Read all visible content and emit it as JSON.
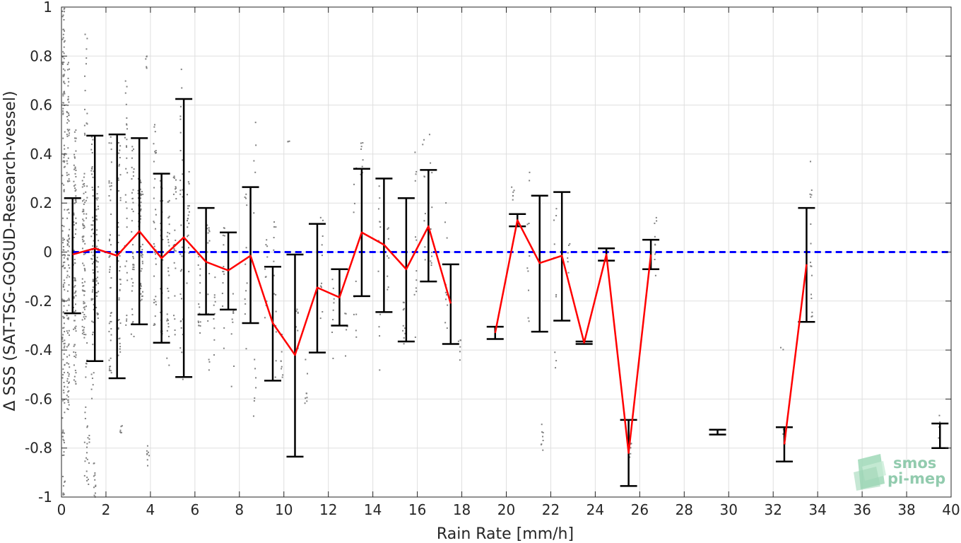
{
  "chart_data": {
    "type": "scatter",
    "xlabel": "Rain Rate [mm/h]",
    "ylabel": "Δ SSS (SAT-TSG-GOSUD-Research-vessel)",
    "xlim": [
      0,
      40
    ],
    "ylim": [
      -1,
      1
    ],
    "xticks": [
      0,
      2,
      4,
      6,
      8,
      10,
      12,
      14,
      16,
      18,
      20,
      22,
      24,
      26,
      28,
      30,
      32,
      34,
      36,
      38,
      40
    ],
    "yticks": [
      -1,
      -0.8,
      -0.6,
      -0.4,
      -0.2,
      0,
      0.2,
      0.4,
      0.6,
      0.8,
      1
    ],
    "xtick_labels": [
      "0",
      "2",
      "4",
      "6",
      "8",
      "10",
      "12",
      "14",
      "16",
      "18",
      "20",
      "22",
      "24",
      "26",
      "28",
      "30",
      "32",
      "34",
      "36",
      "38",
      "40"
    ],
    "ytick_labels": [
      "-1",
      "-0.8",
      "-0.6",
      "-0.4",
      "-0.2",
      "0",
      "0.2",
      "0.4",
      "0.6",
      "0.8",
      "1"
    ],
    "grid": true,
    "zero_line": {
      "y": 0,
      "color": "#0000ff",
      "style": "dashed"
    },
    "colors": {
      "scatter": "#808080",
      "mean": "#ff0000",
      "errorbar": "#000000",
      "zero": "#0000ff"
    },
    "errorbars": [
      {
        "x": 0.5,
        "mean": -0.01,
        "low": -0.25,
        "high": 0.22
      },
      {
        "x": 1.5,
        "mean": 0.015,
        "low": -0.445,
        "high": 0.475
      },
      {
        "x": 2.5,
        "mean": -0.015,
        "low": -0.515,
        "high": 0.48
      },
      {
        "x": 3.5,
        "mean": 0.085,
        "low": -0.295,
        "high": 0.465
      },
      {
        "x": 4.5,
        "mean": -0.025,
        "low": -0.37,
        "high": 0.32
      },
      {
        "x": 5.5,
        "mean": 0.06,
        "low": -0.51,
        "high": 0.625
      },
      {
        "x": 6.5,
        "mean": -0.04,
        "low": -0.255,
        "high": 0.18
      },
      {
        "x": 7.5,
        "mean": -0.075,
        "low": -0.235,
        "high": 0.08
      },
      {
        "x": 8.5,
        "mean": -0.015,
        "low": -0.29,
        "high": 0.265
      },
      {
        "x": 9.5,
        "mean": -0.29,
        "low": -0.525,
        "high": -0.06
      },
      {
        "x": 10.5,
        "mean": -0.42,
        "low": -0.835,
        "high": -0.01
      },
      {
        "x": 11.5,
        "mean": -0.145,
        "low": -0.41,
        "high": 0.115
      },
      {
        "x": 12.5,
        "mean": -0.185,
        "low": -0.3,
        "high": -0.07
      },
      {
        "x": 13.5,
        "mean": 0.08,
        "low": -0.18,
        "high": 0.34
      },
      {
        "x": 14.5,
        "mean": 0.03,
        "low": -0.245,
        "high": 0.3
      },
      {
        "x": 15.5,
        "mean": -0.07,
        "low": -0.365,
        "high": 0.22
      },
      {
        "x": 16.5,
        "mean": 0.105,
        "low": -0.12,
        "high": 0.335
      },
      {
        "x": 17.5,
        "mean": -0.21,
        "low": -0.375,
        "high": -0.05
      },
      {
        "x": 19.5,
        "mean": -0.33,
        "low": -0.355,
        "high": -0.305
      },
      {
        "x": 20.5,
        "mean": 0.13,
        "low": 0.105,
        "high": 0.155
      },
      {
        "x": 21.5,
        "mean": -0.045,
        "low": -0.325,
        "high": 0.23
      },
      {
        "x": 22.5,
        "mean": -0.015,
        "low": -0.28,
        "high": 0.245
      },
      {
        "x": 23.5,
        "mean": -0.37,
        "low": -0.375,
        "high": -0.365
      },
      {
        "x": 24.5,
        "mean": -0.01,
        "low": -0.035,
        "high": 0.015
      },
      {
        "x": 25.5,
        "mean": -0.82,
        "low": -0.955,
        "high": -0.685
      },
      {
        "x": 26.5,
        "mean": -0.01,
        "low": -0.07,
        "high": 0.05
      },
      {
        "x": 29.5,
        "mean": -0.735,
        "low": -0.745,
        "high": -0.725
      },
      {
        "x": 32.5,
        "mean": -0.785,
        "low": -0.855,
        "high": -0.715
      },
      {
        "x": 33.5,
        "mean": -0.05,
        "low": -0.285,
        "high": 0.18
      },
      {
        "x": 39.5,
        "mean": -0.75,
        "low": -0.8,
        "high": -0.7
      }
    ],
    "mean_line_segments": [
      [
        [
          0.5,
          -0.01
        ],
        [
          1.5,
          0.015
        ],
        [
          2.5,
          -0.015
        ],
        [
          3.5,
          0.085
        ],
        [
          4.5,
          -0.025
        ],
        [
          5.5,
          0.06
        ],
        [
          6.5,
          -0.04
        ],
        [
          7.5,
          -0.075
        ],
        [
          8.5,
          -0.015
        ],
        [
          9.5,
          -0.29
        ],
        [
          10.5,
          -0.42
        ],
        [
          11.5,
          -0.145
        ],
        [
          12.5,
          -0.185
        ],
        [
          13.5,
          0.08
        ],
        [
          14.5,
          0.03
        ],
        [
          15.5,
          -0.07
        ],
        [
          16.5,
          0.105
        ],
        [
          17.5,
          -0.21
        ]
      ],
      [
        [
          19.5,
          -0.33
        ],
        [
          20.5,
          0.13
        ],
        [
          21.5,
          -0.045
        ],
        [
          22.5,
          -0.015
        ],
        [
          23.5,
          -0.37
        ],
        [
          24.5,
          -0.01
        ],
        [
          25.5,
          -0.82
        ],
        [
          26.5,
          -0.01
        ]
      ],
      [
        [
          32.5,
          -0.785
        ],
        [
          33.5,
          -0.05
        ]
      ]
    ],
    "scatter_clusters": [
      {
        "x": 0.1,
        "y": [
          -1.0,
          1.0
        ],
        "n": 160
      },
      {
        "x": 0.3,
        "y": [
          -0.65,
          0.8
        ],
        "n": 110
      },
      {
        "x": 0.6,
        "y": [
          -0.55,
          0.5
        ],
        "n": 90
      },
      {
        "x": 1.0,
        "y": [
          -0.35,
          0.35
        ],
        "n": 70
      },
      {
        "x": 1.1,
        "y": [
          -1.0,
          0.95
        ],
        "n": 40
      },
      {
        "x": 1.4,
        "y": [
          -0.6,
          0.5
        ],
        "n": 60
      },
      {
        "x": 1.6,
        "y": [
          -0.3,
          0.3
        ],
        "n": 40
      },
      {
        "x": 1.2,
        "y": [
          -0.95,
          -0.7
        ],
        "n": 14
      },
      {
        "x": 1.5,
        "y": [
          -1.0,
          -0.85
        ],
        "n": 12
      },
      {
        "x": 2.2,
        "y": [
          -0.5,
          0.5
        ],
        "n": 45
      },
      {
        "x": 2.6,
        "y": [
          -0.45,
          0.45
        ],
        "n": 40
      },
      {
        "x": 2.9,
        "y": [
          -0.3,
          0.8
        ],
        "n": 30
      },
      {
        "x": 2.7,
        "y": [
          -0.75,
          -0.7
        ],
        "n": 6
      },
      {
        "x": 3.2,
        "y": [
          -0.35,
          0.5
        ],
        "n": 40
      },
      {
        "x": 3.6,
        "y": [
          -0.2,
          0.3
        ],
        "n": 35
      },
      {
        "x": 3.8,
        "y": [
          0.75,
          0.8
        ],
        "n": 5
      },
      {
        "x": 3.5,
        "y": [
          0.1,
          0.3
        ],
        "n": 20
      },
      {
        "x": 4.2,
        "y": [
          -0.3,
          0.55
        ],
        "n": 35
      },
      {
        "x": 4.5,
        "y": [
          -0.35,
          0.3
        ],
        "n": 30
      },
      {
        "x": 3.9,
        "y": [
          -0.9,
          -0.75
        ],
        "n": 8
      },
      {
        "x": 4.8,
        "y": [
          -0.5,
          0.25
        ],
        "n": 30
      },
      {
        "x": 5.1,
        "y": [
          -0.35,
          0.4
        ],
        "n": 25
      },
      {
        "x": 5.4,
        "y": [
          -0.65,
          0.75
        ],
        "n": 30
      },
      {
        "x": 5.7,
        "y": [
          -0.2,
          0.35
        ],
        "n": 20
      },
      {
        "x": 6.2,
        "y": [
          -0.35,
          0.2
        ],
        "n": 18
      },
      {
        "x": 6.6,
        "y": [
          -0.5,
          0.2
        ],
        "n": 16
      },
      {
        "x": 6.9,
        "y": [
          -0.45,
          -0.1
        ],
        "n": 10
      },
      {
        "x": 7.3,
        "y": [
          -0.4,
          0.1
        ],
        "n": 14
      },
      {
        "x": 7.7,
        "y": [
          -0.55,
          -0.15
        ],
        "n": 10
      },
      {
        "x": 8.3,
        "y": [
          -0.4,
          0.25
        ],
        "n": 12
      },
      {
        "x": 8.7,
        "y": [
          -0.75,
          0.55
        ],
        "n": 12
      },
      {
        "x": 9.2,
        "y": [
          -0.35,
          0.05
        ],
        "n": 10
      },
      {
        "x": 9.6,
        "y": [
          -0.55,
          0.15
        ],
        "n": 14
      },
      {
        "x": 9.9,
        "y": [
          -0.6,
          -0.3
        ],
        "n": 8
      },
      {
        "x": 10.2,
        "y": [
          0.45,
          0.47
        ],
        "n": 3
      },
      {
        "x": 10.6,
        "y": [
          -0.4,
          -0.2
        ],
        "n": 8
      },
      {
        "x": 11.0,
        "y": [
          -0.62,
          -0.35
        ],
        "n": 8
      },
      {
        "x": 11.7,
        "y": [
          -0.3,
          0.15
        ],
        "n": 10
      },
      {
        "x": 12.2,
        "y": [
          -0.45,
          -0.1
        ],
        "n": 8
      },
      {
        "x": 12.8,
        "y": [
          -0.45,
          -0.2
        ],
        "n": 6
      },
      {
        "x": 13.2,
        "y": [
          -0.35,
          0.35
        ],
        "n": 10
      },
      {
        "x": 13.5,
        "y": [
          0.3,
          0.45
        ],
        "n": 8
      },
      {
        "x": 14.3,
        "y": [
          -0.55,
          0.3
        ],
        "n": 12
      },
      {
        "x": 14.7,
        "y": [
          -0.3,
          0.1
        ],
        "n": 8
      },
      {
        "x": 15.4,
        "y": [
          -0.4,
          -0.2
        ],
        "n": 10
      },
      {
        "x": 15.9,
        "y": [
          -0.35,
          0.45
        ],
        "n": 12
      },
      {
        "x": 16.3,
        "y": [
          -0.25,
          0.55
        ],
        "n": 10
      },
      {
        "x": 16.6,
        "y": [
          -0.15,
          0.7
        ],
        "n": 10
      },
      {
        "x": 17.3,
        "y": [
          -0.35,
          0.35
        ],
        "n": 10
      },
      {
        "x": 17.9,
        "y": [
          -0.45,
          -0.35
        ],
        "n": 6
      },
      {
        "x": 20.3,
        "y": [
          0.2,
          0.28
        ],
        "n": 6
      },
      {
        "x": 21.0,
        "y": [
          -0.35,
          0.4
        ],
        "n": 10
      },
      {
        "x": 21.6,
        "y": [
          -0.85,
          -0.7
        ],
        "n": 8
      },
      {
        "x": 22.2,
        "y": [
          -0.55,
          0.2
        ],
        "n": 10
      },
      {
        "x": 22.8,
        "y": [
          -0.15,
          0.05
        ],
        "n": 6
      },
      {
        "x": 25.6,
        "y": [
          -0.85,
          -0.75
        ],
        "n": 5
      },
      {
        "x": 26.7,
        "y": [
          -0.1,
          0.15
        ],
        "n": 10
      },
      {
        "x": 32.5,
        "y": [
          -0.85,
          -0.7
        ],
        "n": 6
      },
      {
        "x": 32.4,
        "y": [
          -0.4,
          -0.38
        ],
        "n": 2
      },
      {
        "x": 33.7,
        "y": [
          -0.3,
          0.4
        ],
        "n": 16
      },
      {
        "x": 39.5,
        "y": [
          -0.8,
          -0.65
        ],
        "n": 6
      }
    ]
  },
  "logo": {
    "line1": "smos",
    "line2": "pi-mep"
  }
}
